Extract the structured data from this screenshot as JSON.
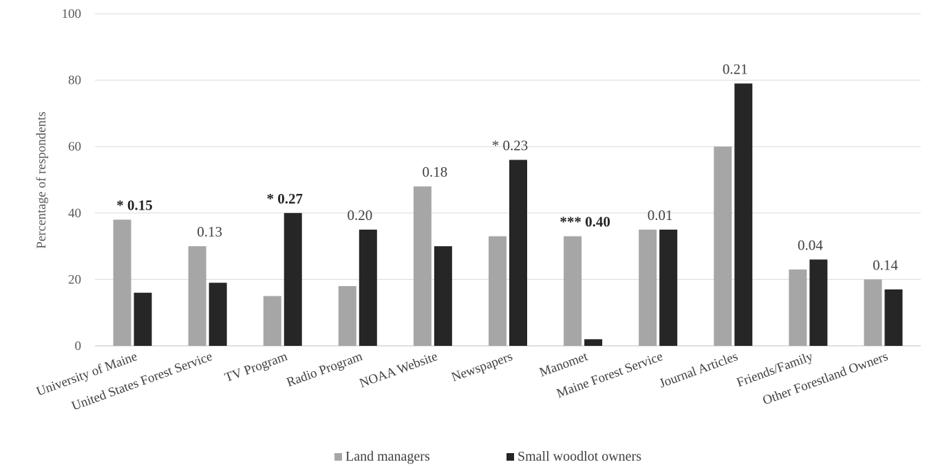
{
  "chart_data": {
    "type": "bar",
    "ylabel": "Percentage of respondents",
    "ylim": [
      0,
      100
    ],
    "yticks": [
      "0",
      "20",
      "40",
      "60",
      "80",
      "100"
    ],
    "grid": true,
    "legend_position": "bottom",
    "categories": [
      "University of Maine",
      "United States Forest Service",
      "TV Program",
      "Radio Program",
      "NOAA Website",
      "Newspapers",
      "Manomet",
      "Maine Forest Service",
      "Journal Articles",
      "Friends/Family",
      "Other Forestland Owners"
    ],
    "series": [
      {
        "name": "Land managers",
        "color": "#a6a6a6",
        "values": [
          38,
          30,
          15,
          18,
          48,
          33,
          33,
          35,
          60,
          23,
          20
        ]
      },
      {
        "name": "Small woodlot owners",
        "color": "#262626",
        "values": [
          16,
          19,
          40,
          35,
          30,
          56,
          2,
          35,
          79,
          26,
          17
        ]
      }
    ],
    "annotations": [
      {
        "prefix": "* ",
        "value": "0.15",
        "bold": true
      },
      {
        "prefix": "",
        "value": "0.13",
        "bold": false
      },
      {
        "prefix": "* ",
        "value": "0.27",
        "bold": true
      },
      {
        "prefix": "",
        "value": "0.20",
        "bold": false
      },
      {
        "prefix": "",
        "value": "0.18",
        "bold": false
      },
      {
        "prefix": "* ",
        "value": "0.23",
        "bold": false
      },
      {
        "prefix": "*** ",
        "value": "0.40",
        "bold": true
      },
      {
        "prefix": "",
        "value": "0.01",
        "bold": false
      },
      {
        "prefix": "",
        "value": "0.21",
        "bold": false
      },
      {
        "prefix": "",
        "value": "0.04",
        "bold": false
      },
      {
        "prefix": "",
        "value": "0.14",
        "bold": false
      }
    ]
  }
}
